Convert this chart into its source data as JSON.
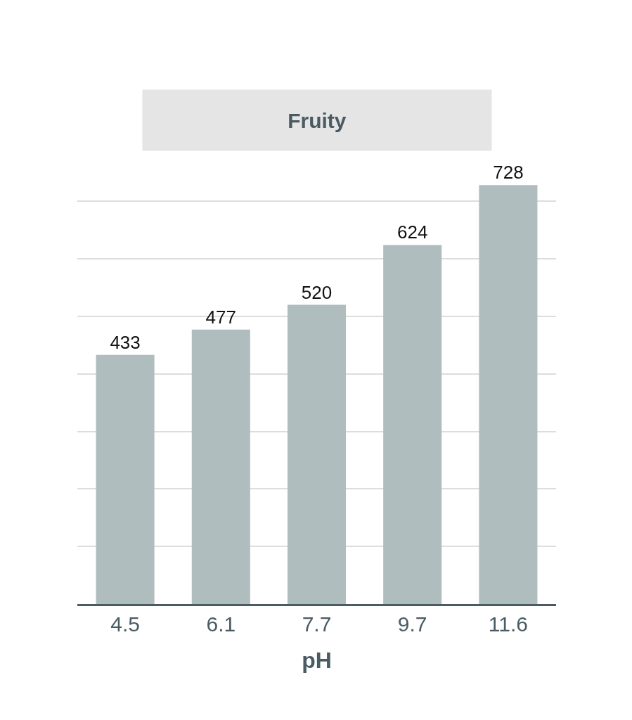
{
  "chart_data": {
    "type": "bar",
    "title": "Fruity",
    "xlabel": "pH",
    "categories": [
      "4.5",
      "6.1",
      "7.7",
      "9.7",
      "11.6"
    ],
    "values": [
      433,
      477,
      520,
      624,
      728
    ],
    "color": "#b0bdbf",
    "tick_labels": "x",
    "grid": "y",
    "data_labels": true
  }
}
